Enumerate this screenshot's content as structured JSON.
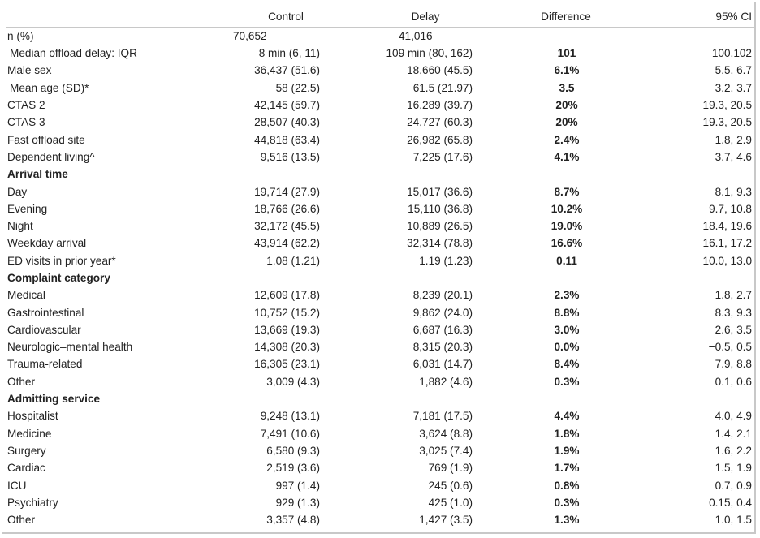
{
  "header": {
    "label": "",
    "control": "Control",
    "delay": "Delay",
    "difference": "Difference",
    "ci": "95% CI"
  },
  "rows": [
    {
      "type": "n",
      "label": "n (%)",
      "control": "70,652",
      "delay": "41,016",
      "diff": "",
      "ci": ""
    },
    {
      "type": "data",
      "indent": true,
      "label": "Median offload delay: IQR",
      "control": "8 min (6, 11)",
      "delay": "109 min (80, 162)",
      "diff": "101",
      "ci": "100,102"
    },
    {
      "type": "data",
      "label": "Male sex",
      "control": "36,437 (51.6)",
      "delay": "18,660 (45.5)",
      "diff": "6.1%",
      "ci": "5.5, 6.7"
    },
    {
      "type": "data",
      "indent": true,
      "label": "Mean age (SD)*",
      "control": "58 (22.5)",
      "delay": "61.5 (21.97)",
      "diff": "3.5",
      "ci": "3.2, 3.7"
    },
    {
      "type": "data",
      "label": "CTAS 2",
      "control": "42,145 (59.7)",
      "delay": "16,289 (39.7)",
      "diff": "20%",
      "ci": "19.3, 20.5"
    },
    {
      "type": "data",
      "label": "CTAS 3",
      "control": "28,507 (40.3)",
      "delay": "24,727 (60.3)",
      "diff": "20%",
      "ci": "19.3, 20.5"
    },
    {
      "type": "data",
      "label": "Fast offload site",
      "control": "44,818 (63.4)",
      "delay": "26,982 (65.8)",
      "diff": "2.4%",
      "ci": "1.8, 2.9"
    },
    {
      "type": "data",
      "label": "Dependent living^",
      "control": "9,516 (13.5)",
      "delay": "7,225 (17.6)",
      "diff": "4.1%",
      "ci": "3.7, 4.6"
    },
    {
      "type": "section",
      "label": "Arrival time"
    },
    {
      "type": "data",
      "label": "Day",
      "control": "19,714 (27.9)",
      "delay": "15,017 (36.6)",
      "diff": "8.7%",
      "ci": "8.1, 9.3"
    },
    {
      "type": "data",
      "label": "Evening",
      "control": "18,766 (26.6)",
      "delay": "15,110 (36.8)",
      "diff": "10.2%",
      "ci": "9.7, 10.8"
    },
    {
      "type": "data",
      "label": "Night",
      "control": "32,172 (45.5)",
      "delay": "10,889 (26.5)",
      "diff": "19.0%",
      "ci": "18.4, 19.6"
    },
    {
      "type": "data",
      "label": "Weekday arrival",
      "control": "43,914 (62.2)",
      "delay": "32,314 (78.8)",
      "diff": "16.6%",
      "ci": "16.1, 17.2"
    },
    {
      "type": "data",
      "label": "ED visits in prior year*",
      "control": "1.08 (1.21)",
      "delay": "1.19 (1.23)",
      "diff": "0.11",
      "ci": "10.0, 13.0"
    },
    {
      "type": "section",
      "label": "Complaint category"
    },
    {
      "type": "data",
      "label": "Medical",
      "control": "12,609 (17.8)",
      "delay": "8,239 (20.1)",
      "diff": "2.3%",
      "ci": "1.8, 2.7"
    },
    {
      "type": "data",
      "label": "Gastrointestinal",
      "control": "10,752 (15.2)",
      "delay": "9,862 (24.0)",
      "diff": "8.8%",
      "ci": "8.3, 9.3"
    },
    {
      "type": "data",
      "label": "Cardiovascular",
      "control": "13,669 (19.3)",
      "delay": "6,687 (16.3)",
      "diff": "3.0%",
      "ci": "2.6, 3.5"
    },
    {
      "type": "data",
      "label": "Neurologic–mental health",
      "control": "14,308 (20.3)",
      "delay": "8,315 (20.3)",
      "diff": "0.0%",
      "ci": "−0.5, 0.5"
    },
    {
      "type": "data",
      "label": "Trauma-related",
      "control": "16,305 (23.1)",
      "delay": "6,031 (14.7)",
      "diff": "8.4%",
      "ci": "7.9, 8.8"
    },
    {
      "type": "data",
      "label": "Other",
      "control": "3,009 (4.3)",
      "delay": "1,882 (4.6)",
      "diff": "0.3%",
      "ci": "0.1, 0.6"
    },
    {
      "type": "section",
      "label": "Admitting service"
    },
    {
      "type": "data",
      "label": "Hospitalist",
      "control": "9,248 (13.1)",
      "delay": "7,181 (17.5)",
      "diff": "4.4%",
      "ci": "4.0, 4.9"
    },
    {
      "type": "data",
      "label": "Medicine",
      "control": "7,491 (10.6)",
      "delay": "3,624 (8.8)",
      "diff": "1.8%",
      "ci": "1.4, 2.1"
    },
    {
      "type": "data",
      "label": "Surgery",
      "control": "6,580 (9.3)",
      "delay": "3,025 (7.4)",
      "diff": "1.9%",
      "ci": "1.6, 2.2"
    },
    {
      "type": "data",
      "label": "Cardiac",
      "control": "2,519 (3.6)",
      "delay": "769 (1.9)",
      "diff": "1.7%",
      "ci": "1.5, 1.9"
    },
    {
      "type": "data",
      "label": "ICU",
      "control": "997 (1.4)",
      "delay": "245 (0.6)",
      "diff": "0.8%",
      "ci": "0.7, 0.9"
    },
    {
      "type": "data",
      "label": "Psychiatry",
      "control": "929 (1.3)",
      "delay": "425 (1.0)",
      "diff": "0.3%",
      "ci": "0.15, 0.4"
    },
    {
      "type": "data",
      "label": "Other",
      "control": "3,357 (4.8)",
      "delay": "1,427 (3.5)",
      "diff": "1.3%",
      "ci": "1.0, 1.5"
    }
  ]
}
